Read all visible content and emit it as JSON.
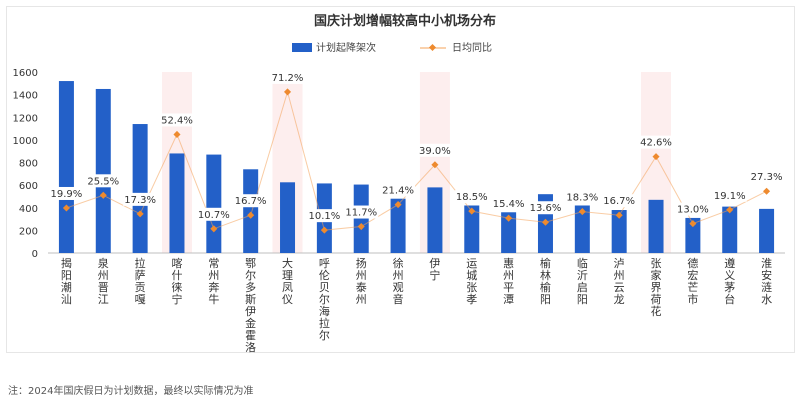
{
  "chart_data": {
    "type": "bar+line",
    "title": "国庆计划增幅较高中小机场分布",
    "legend": {
      "position": "top",
      "items": [
        "计划起降架次",
        "日均同比"
      ]
    },
    "categories": [
      "揭阳潮汕",
      "泉州晋江",
      "拉萨贡嘎",
      "喀什徕宁",
      "常州奔牛",
      "鄂尔多斯伊金霍洛",
      "大理凤仪",
      "呼伦贝尔海拉尔",
      "扬州泰州",
      "徐州观音",
      "伊宁",
      "运城张孝",
      "惠州平潭",
      "榆林榆阳",
      "临沂启阳",
      "泸州云龙",
      "张家界荷花",
      "德宏芒市",
      "遵义茅台",
      "淮安涟水"
    ],
    "series": [
      {
        "name": "计划起降架次",
        "type": "bar",
        "values": [
          1520,
          1450,
          1140,
          880,
          870,
          740,
          625,
          615,
          605,
          480,
          580,
          420,
          360,
          520,
          420,
          380,
          470,
          310,
          410,
          390
        ]
      },
      {
        "name": "日均同比",
        "type": "line",
        "values": [
          19.9,
          25.5,
          17.3,
          52.4,
          10.7,
          16.7,
          71.2,
          10.1,
          11.7,
          21.4,
          39.0,
          18.5,
          15.4,
          13.6,
          18.3,
          16.7,
          42.6,
          13.0,
          19.1,
          27.3
        ],
        "labels": [
          "19.9%",
          "25.5%",
          "17.3%",
          "52.4%",
          "10.7%",
          "16.7%",
          "71.2%",
          "10.1%",
          "11.7%",
          "21.4%",
          "39.0%",
          "18.5%",
          "15.4%",
          "13.6%",
          "18.3%",
          "16.7%",
          "42.6%",
          "13.0%",
          "19.1%",
          "27.3%"
        ]
      }
    ],
    "ylim": [
      0,
      1600
    ],
    "yticks": [
      0,
      200,
      400,
      600,
      800,
      1000,
      1200,
      1400,
      1600
    ],
    "y2lim": [
      0,
      80
    ],
    "highlighted": [
      "喀什徕宁",
      "大理凤仪",
      "伊宁",
      "张家界荷花"
    ],
    "colors": {
      "bar": "#2360c8",
      "line": "#f4a35a",
      "marker": "#ee8a2e",
      "highlight": "#fdeeee"
    }
  },
  "footnote": "注：2024年国庆假日为计划数据，最终以实际情况为准"
}
